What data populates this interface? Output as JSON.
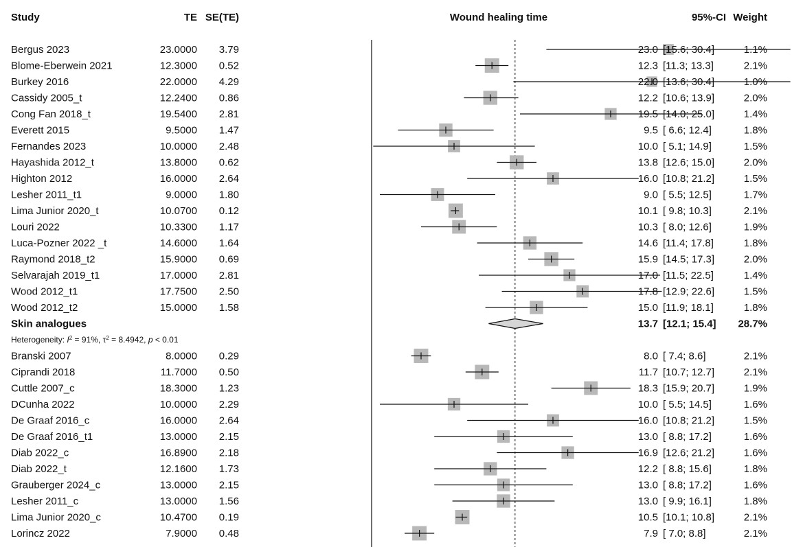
{
  "chart_data": {
    "type": "forest",
    "title": "Wound healing time",
    "columns": {
      "study": "Study",
      "te": "TE",
      "se": "SE(TE)",
      "ci": "95%-CI",
      "weight": "Weight"
    },
    "reference_line": 13.7,
    "rows": [
      {
        "kind": "study",
        "name": "Bergus 2023",
        "te": "23.0000",
        "se": "3.79",
        "est": 23.0,
        "lo": 15.6,
        "hi": 30.4,
        "est_label": "23.0",
        "ci_label": "[15.6; 30.4]",
        "weight": "1.1%",
        "w": 1.1
      },
      {
        "kind": "study",
        "name": "Blome-Eberwein 2021",
        "te": "12.3000",
        "se": "0.52",
        "est": 12.3,
        "lo": 11.3,
        "hi": 13.3,
        "est_label": "12.3",
        "ci_label": "[11.3; 13.3]",
        "weight": "2.1%",
        "w": 2.1
      },
      {
        "kind": "study",
        "name": "Burkey 2016",
        "te": "22.0000",
        "se": "4.29",
        "est": 22.0,
        "lo": 13.6,
        "hi": 30.4,
        "est_label": "22.0",
        "ci_label": "[13.6; 30.4]",
        "weight": "1.0%",
        "w": 1.0
      },
      {
        "kind": "study",
        "name": "Cassidy 2005_t",
        "te": "12.2400",
        "se": "0.86",
        "est": 12.2,
        "lo": 10.6,
        "hi": 13.9,
        "est_label": "12.2",
        "ci_label": "[10.6; 13.9]",
        "weight": "2.0%",
        "w": 2.0
      },
      {
        "kind": "study",
        "name": "Cong Fan 2018_t",
        "te": "19.5400",
        "se": "2.81",
        "est": 19.5,
        "lo": 14.0,
        "hi": 25.0,
        "est_label": "19.5",
        "ci_label": "[14.0; 25.0]",
        "weight": "1.4%",
        "w": 1.4
      },
      {
        "kind": "study",
        "name": "Everett 2015",
        "te": "9.5000",
        "se": "1.47",
        "est": 9.5,
        "lo": 6.6,
        "hi": 12.4,
        "est_label": "9.5",
        "ci_label": "[ 6.6; 12.4]",
        "weight": "1.8%",
        "w": 1.8
      },
      {
        "kind": "study",
        "name": "Fernandes 2023",
        "te": "10.0000",
        "se": "2.48",
        "est": 10.0,
        "lo": 5.1,
        "hi": 14.9,
        "est_label": "10.0",
        "ci_label": "[ 5.1; 14.9]",
        "weight": "1.5%",
        "w": 1.5
      },
      {
        "kind": "study",
        "name": "Hayashida 2012_t",
        "te": "13.8000",
        "se": "0.62",
        "est": 13.8,
        "lo": 12.6,
        "hi": 15.0,
        "est_label": "13.8",
        "ci_label": "[12.6; 15.0]",
        "weight": "2.0%",
        "w": 2.0
      },
      {
        "kind": "study",
        "name": "Highton 2012",
        "te": "16.0000",
        "se": "2.64",
        "est": 16.0,
        "lo": 10.8,
        "hi": 21.2,
        "est_label": "16.0",
        "ci_label": "[10.8; 21.2]",
        "weight": "1.5%",
        "w": 1.5
      },
      {
        "kind": "study",
        "name": "Lesher 2011_t1",
        "te": "9.0000",
        "se": "1.80",
        "est": 9.0,
        "lo": 5.5,
        "hi": 12.5,
        "est_label": "9.0",
        "ci_label": "[ 5.5; 12.5]",
        "weight": "1.7%",
        "w": 1.7
      },
      {
        "kind": "study",
        "name": "Lima Junior 2020_t",
        "te": "10.0700",
        "se": "0.12",
        "est": 10.1,
        "lo": 9.8,
        "hi": 10.3,
        "est_label": "10.1",
        "ci_label": "[ 9.8; 10.3]",
        "weight": "2.1%",
        "w": 2.1
      },
      {
        "kind": "study",
        "name": "Louri 2022",
        "te": "10.3300",
        "se": "1.17",
        "est": 10.3,
        "lo": 8.0,
        "hi": 12.6,
        "est_label": "10.3",
        "ci_label": "[ 8.0; 12.6]",
        "weight": "1.9%",
        "w": 1.9
      },
      {
        "kind": "study",
        "name": "Luca-Pozner 2022 _t",
        "te": "14.6000",
        "se": "1.64",
        "est": 14.6,
        "lo": 11.4,
        "hi": 17.8,
        "est_label": "14.6",
        "ci_label": "[11.4; 17.8]",
        "weight": "1.8%",
        "w": 1.8
      },
      {
        "kind": "study",
        "name": "Raymond 2018_t2",
        "te": "15.9000",
        "se": "0.69",
        "est": 15.9,
        "lo": 14.5,
        "hi": 17.3,
        "est_label": "15.9",
        "ci_label": "[14.5; 17.3]",
        "weight": "2.0%",
        "w": 2.0
      },
      {
        "kind": "study",
        "name": "Selvarajah 2019_t1",
        "te": "17.0000",
        "se": "2.81",
        "est": 17.0,
        "lo": 11.5,
        "hi": 22.5,
        "est_label": "17.0",
        "ci_label": "[11.5; 22.5]",
        "weight": "1.4%",
        "w": 1.4
      },
      {
        "kind": "study",
        "name": "Wood 2012_t1",
        "te": "17.7500",
        "se": "2.50",
        "est": 17.8,
        "lo": 12.9,
        "hi": 22.6,
        "est_label": "17.8",
        "ci_label": "[12.9; 22.6]",
        "weight": "1.5%",
        "w": 1.5
      },
      {
        "kind": "study",
        "name": "Wood 2012_t2",
        "te": "15.0000",
        "se": "1.58",
        "est": 15.0,
        "lo": 11.9,
        "hi": 18.1,
        "est_label": "15.0",
        "ci_label": "[11.9; 18.1]",
        "weight": "1.8%",
        "w": 1.8
      },
      {
        "kind": "summary",
        "name": "Skin analogues",
        "est": 13.7,
        "lo": 12.1,
        "hi": 15.4,
        "est_label": "13.7",
        "ci_label": "[12.1; 15.4]",
        "weight": "28.7%"
      },
      {
        "kind": "heterogeneity",
        "i2": "91%",
        "tau2": "8.4942",
        "p": "< 0.01"
      },
      {
        "kind": "study",
        "name": "Branski 2007",
        "te": "8.0000",
        "se": "0.29",
        "est": 8.0,
        "lo": 7.4,
        "hi": 8.6,
        "est_label": "8.0",
        "ci_label": "[ 7.4; 8.6]",
        "weight": "2.1%",
        "w": 2.1
      },
      {
        "kind": "study",
        "name": "Ciprandi 2018",
        "te": "11.7000",
        "se": "0.50",
        "est": 11.7,
        "lo": 10.7,
        "hi": 12.7,
        "est_label": "11.7",
        "ci_label": "[10.7; 12.7]",
        "weight": "2.1%",
        "w": 2.1
      },
      {
        "kind": "study",
        "name": "Cuttle 2007_c",
        "te": "18.3000",
        "se": "1.23",
        "est": 18.3,
        "lo": 15.9,
        "hi": 20.7,
        "est_label": "18.3",
        "ci_label": "[15.9; 20.7]",
        "weight": "1.9%",
        "w": 1.9
      },
      {
        "kind": "study",
        "name": "DCunha 2022",
        "te": "10.0000",
        "se": "2.29",
        "est": 10.0,
        "lo": 5.5,
        "hi": 14.5,
        "est_label": "10.0",
        "ci_label": "[ 5.5; 14.5]",
        "weight": "1.6%",
        "w": 1.6
      },
      {
        "kind": "study",
        "name": "De Graaf 2016_c",
        "te": "16.0000",
        "se": "2.64",
        "est": 16.0,
        "lo": 10.8,
        "hi": 21.2,
        "est_label": "16.0",
        "ci_label": "[10.8; 21.2]",
        "weight": "1.5%",
        "w": 1.5
      },
      {
        "kind": "study",
        "name": "De Graaf 2016_t1",
        "te": "13.0000",
        "se": "2.15",
        "est": 13.0,
        "lo": 8.8,
        "hi": 17.2,
        "est_label": "13.0",
        "ci_label": "[ 8.8; 17.2]",
        "weight": "1.6%",
        "w": 1.6
      },
      {
        "kind": "study",
        "name": "Diab 2022_c",
        "te": "16.8900",
        "se": "2.18",
        "est": 16.9,
        "lo": 12.6,
        "hi": 21.2,
        "est_label": "16.9",
        "ci_label": "[12.6; 21.2]",
        "weight": "1.6%",
        "w": 1.6
      },
      {
        "kind": "study",
        "name": "Diab 2022_t",
        "te": "12.1600",
        "se": "1.73",
        "est": 12.2,
        "lo": 8.8,
        "hi": 15.6,
        "est_label": "12.2",
        "ci_label": "[ 8.8; 15.6]",
        "weight": "1.8%",
        "w": 1.8
      },
      {
        "kind": "study",
        "name": "Grauberger 2024_c",
        "te": "13.0000",
        "se": "2.15",
        "est": 13.0,
        "lo": 8.8,
        "hi": 17.2,
        "est_label": "13.0",
        "ci_label": "[ 8.8; 17.2]",
        "weight": "1.6%",
        "w": 1.6
      },
      {
        "kind": "study",
        "name": "Lesher 2011_c",
        "te": "13.0000",
        "se": "1.56",
        "est": 13.0,
        "lo": 9.9,
        "hi": 16.1,
        "est_label": "13.0",
        "ci_label": "[ 9.9; 16.1]",
        "weight": "1.8%",
        "w": 1.8
      },
      {
        "kind": "study",
        "name": "Lima Junior 2020_c",
        "te": "10.4700",
        "se": "0.19",
        "est": 10.5,
        "lo": 10.1,
        "hi": 10.8,
        "est_label": "10.5",
        "ci_label": "[10.1; 10.8]",
        "weight": "2.1%",
        "w": 2.1
      },
      {
        "kind": "study",
        "name": "Lorincz 2022",
        "te": "7.9000",
        "se": "0.48",
        "est": 7.9,
        "lo": 7.0,
        "hi": 8.8,
        "est_label": "7.9",
        "ci_label": "[ 7.0; 8.8]",
        "weight": "2.1%",
        "w": 2.1
      }
    ]
  }
}
